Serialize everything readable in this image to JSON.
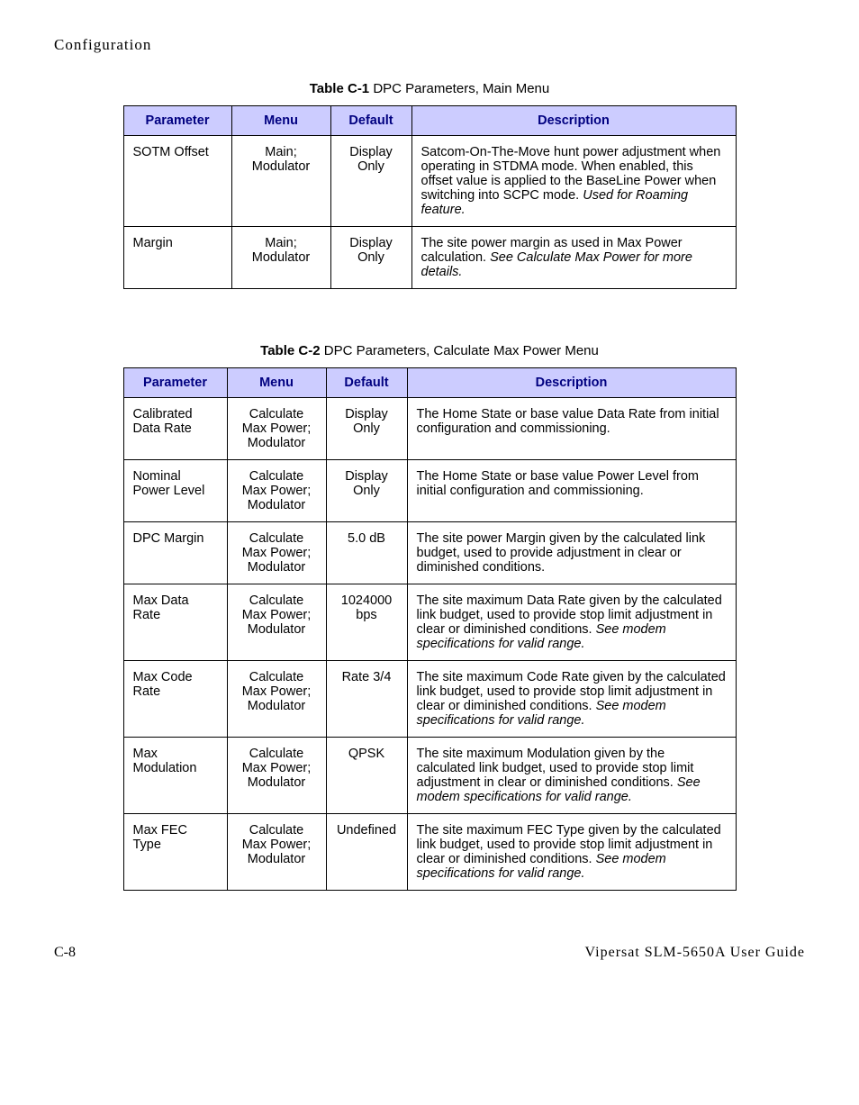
{
  "header": "Configuration",
  "table1": {
    "caption_bold": "Table C-1",
    "caption_rest": "   DPC Parameters, Main Menu",
    "col_widths": [
      "120",
      "110",
      "90",
      "360"
    ],
    "headers": [
      "Parameter",
      "Menu",
      "Default",
      "Description"
    ],
    "rows": [
      {
        "param": "SOTM Offset",
        "menu": "Main;\nModulator",
        "default": "Display\nOnly",
        "desc_plain": "Satcom-On-The-Move hunt power adjustment when operating in STDMA mode. When enabled, this offset value is applied to the BaseLine Power when switching into SCPC mode. ",
        "desc_italic": "Used for Roaming feature."
      },
      {
        "param": "Margin",
        "menu": "Main;\nModulator",
        "default": "Display\nOnly",
        "desc_plain": "The site power margin as used in Max Power calculation. ",
        "desc_italic": "See Calculate Max Power for more details."
      }
    ]
  },
  "table2": {
    "caption_bold": "Table C-2",
    "caption_rest": "   DPC Parameters, Calculate Max Power Menu",
    "col_widths": [
      "115",
      "110",
      "90",
      "365"
    ],
    "headers": [
      "Parameter",
      "Menu",
      "Default",
      "Description"
    ],
    "rows": [
      {
        "param": "Calibrated Data Rate",
        "menu": "Calculate\nMax Power;\nModulator",
        "default": "Display\nOnly",
        "desc_plain": "The Home State or base value Data Rate from initial configuration and commissioning.",
        "desc_italic": ""
      },
      {
        "param": "Nominal Power Level",
        "menu": "Calculate\nMax Power;\nModulator",
        "default": "Display\nOnly",
        "desc_plain": "The Home State or base value Power Level from initial configuration and commissioning.",
        "desc_italic": ""
      },
      {
        "param": "DPC Margin",
        "menu": "Calculate\nMax Power;\nModulator",
        "default": "5.0 dB",
        "desc_plain": "The site power Margin given by the calculated link budget, used to provide adjustment in clear or diminished conditions.",
        "desc_italic": ""
      },
      {
        "param": "Max Data Rate",
        "menu": "Calculate\nMax Power;\nModulator",
        "default": "1024000\nbps",
        "desc_plain": "The site maximum Data Rate given by the calculated link budget, used to provide stop limit adjustment in clear or diminished conditions. ",
        "desc_italic": "See modem specifications for valid range."
      },
      {
        "param": "Max Code Rate",
        "menu": "Calculate\nMax Power;\nModulator",
        "default": "Rate 3/4",
        "desc_plain": "The site maximum Code Rate given by the calculated link budget, used to provide stop limit adjustment in clear or diminished conditions. ",
        "desc_italic": "See modem specifications for valid range."
      },
      {
        "param": "Max Modulation",
        "menu": "Calculate\nMax Power;\nModulator",
        "default": "QPSK",
        "desc_plain": "The site maximum Modulation given by the calculated link budget, used to provide stop limit adjustment in clear or diminished conditions. ",
        "desc_italic": "See modem specifications for valid range."
      },
      {
        "param": "Max FEC Type",
        "menu": "Calculate\nMax Power;\nModulator",
        "default": "Undefined",
        "desc_plain": "The site maximum FEC Type given by the calculated link budget, used to provide stop limit adjustment in clear or diminished conditions. ",
        "desc_italic": "See modem specifications for valid range."
      }
    ]
  },
  "footer": {
    "left": "C-8",
    "right": "Vipersat SLM-5650A User Guide"
  }
}
